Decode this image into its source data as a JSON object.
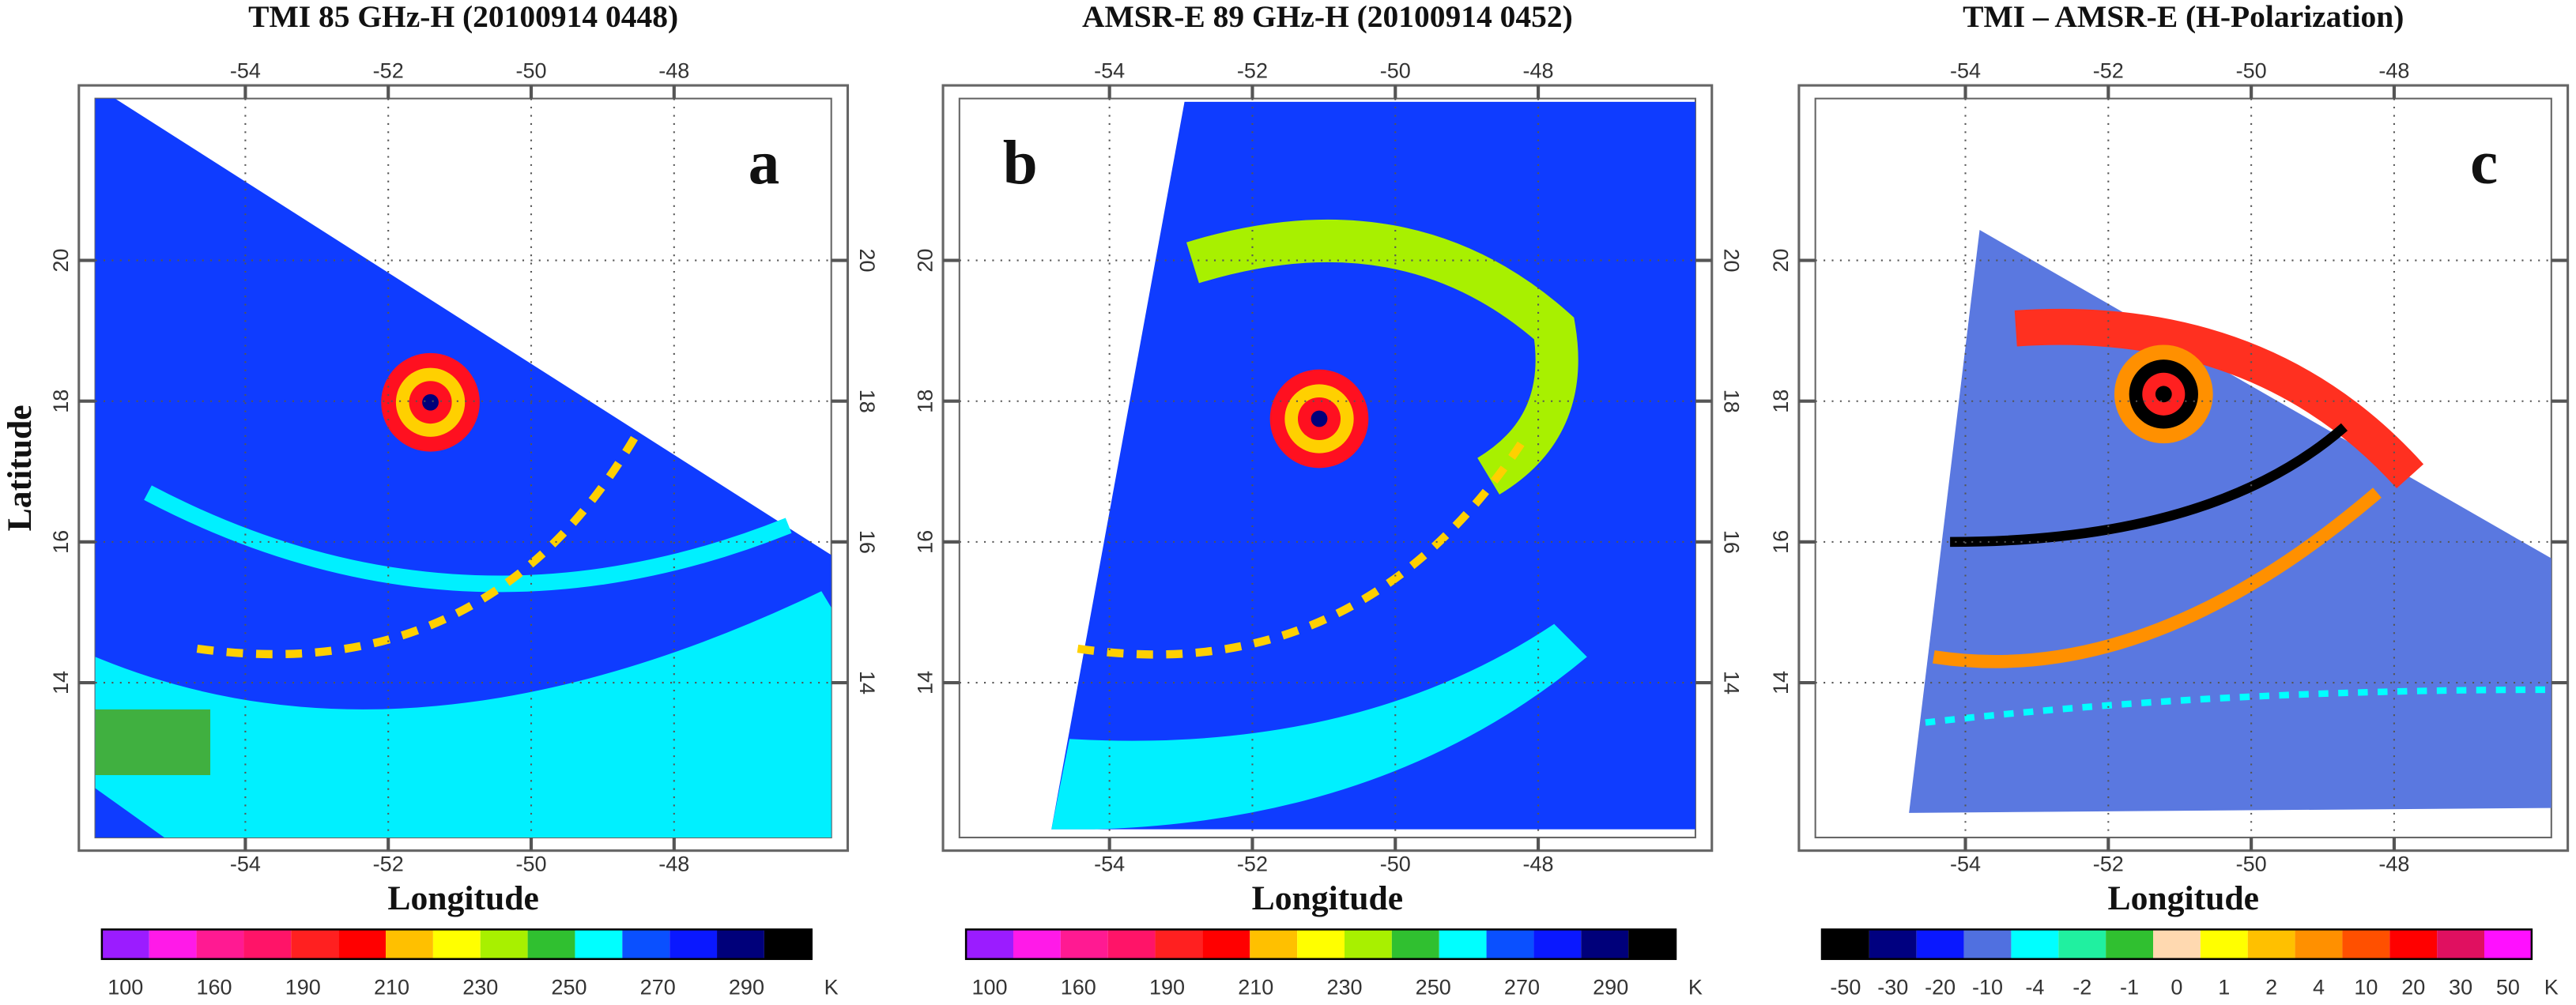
{
  "chart_data": [
    {
      "type": "map",
      "title": "TMI 85 GHz-H  (20100914 0448)",
      "panel_label": "a",
      "xlabel": "Longitude",
      "ylabel": "Latitude",
      "xlim": [
        -56.1,
        -45.8
      ],
      "ylim": [
        11.8,
        22.3
      ],
      "xticks": [
        -54,
        -52,
        -50,
        -48
      ],
      "yticks": [
        14,
        16,
        18,
        20
      ],
      "grid": true,
      "colorbar": {
        "colors": [
          "#9b1cff",
          "#ff1ae8",
          "#ff1a92",
          "#ff1468",
          "#ff2020",
          "#ff0000",
          "#ffc000",
          "#ffff00",
          "#a8f000",
          "#30c030",
          "#00ffff",
          "#0a50ff",
          "#0a18ff",
          "#00007a",
          "#000000"
        ],
        "ticks": [
          100,
          160,
          190,
          210,
          230,
          250,
          270,
          290
        ],
        "unit": "K"
      }
    },
    {
      "type": "map",
      "title": "AMSR-E 89 GHz-H  (20100914 0452)",
      "panel_label": "b",
      "xlabel": "Longitude",
      "xlim": [
        -56.1,
        -45.8
      ],
      "ylim": [
        11.8,
        22.3
      ],
      "xticks": [
        -54,
        -52,
        -50,
        -48
      ],
      "yticks": [
        14,
        16,
        18,
        20
      ],
      "grid": true,
      "colorbar": {
        "colors": [
          "#9b1cff",
          "#ff1ae8",
          "#ff1a92",
          "#ff1468",
          "#ff2020",
          "#ff0000",
          "#ffc000",
          "#ffff00",
          "#a8f000",
          "#30c030",
          "#00ffff",
          "#0a50ff",
          "#0a18ff",
          "#00007a",
          "#000000"
        ],
        "ticks": [
          100,
          160,
          190,
          210,
          230,
          250,
          270,
          290
        ],
        "unit": "K"
      }
    },
    {
      "type": "map",
      "title": "TMI  – AMSR-E (H-Polarization)",
      "panel_label": "c",
      "xlabel": "Longitude",
      "xlim": [
        -56.1,
        -45.8
      ],
      "ylim": [
        11.8,
        22.3
      ],
      "xticks": [
        -54,
        -52,
        -50,
        -48
      ],
      "yticks": [
        14,
        16,
        18,
        20
      ],
      "grid": true,
      "colorbar": {
        "colors": [
          "#000000",
          "#000080",
          "#0a18ff",
          "#5070e0",
          "#00ffff",
          "#20f0a0",
          "#30c030",
          "#ffd9b0",
          "#ffff00",
          "#ffc000",
          "#ff9000",
          "#ff5000",
          "#ff0000",
          "#e01060",
          "#ff10ff"
        ],
        "ticks": [
          -50,
          -30,
          -20,
          -10,
          -4,
          -2,
          -1,
          0,
          1,
          2,
          4,
          10,
          20,
          30,
          50
        ],
        "unit": "K"
      }
    }
  ]
}
